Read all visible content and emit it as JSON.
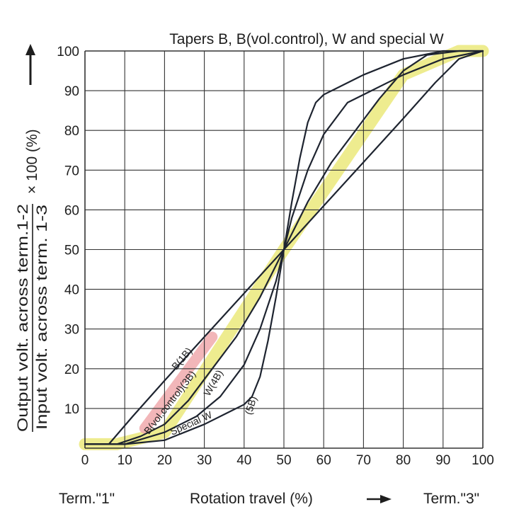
{
  "chart_data": {
    "type": "line",
    "title": "Tapers B, B(vol.control), W and special W",
    "xlabel": "Rotation travel (%)",
    "ylabel_numerator": "Output volt. across term.1-2",
    "ylabel_denominator": "Input volt. across term. 1-3",
    "ylabel_factor": "× 100 (%)",
    "x_start_label": "Term.\"1\"",
    "x_end_label": "Term.\"3\"",
    "xlim": [
      0,
      100
    ],
    "ylim": [
      0,
      100
    ],
    "x_ticks": [
      "0",
      "10",
      "20",
      "30",
      "40",
      "50",
      "60",
      "70",
      "80",
      "90",
      "100"
    ],
    "y_ticks": [
      "10",
      "20",
      "30",
      "40",
      "50",
      "60",
      "70",
      "80",
      "90",
      "100"
    ],
    "grid": true,
    "series": [
      {
        "name": "B(1B)",
        "color": "#1e2430",
        "x": [
          0,
          6,
          12,
          20,
          30,
          40,
          50,
          60,
          70,
          80,
          88,
          94,
          100
        ],
        "y": [
          1,
          1,
          8,
          17,
          28,
          39,
          50,
          61,
          72,
          83,
          92,
          98,
          100
        ]
      },
      {
        "name": "B(vol.control)(3B)",
        "color": "#1e2430",
        "x": [
          0,
          8,
          14,
          20,
          26,
          32,
          38,
          44,
          50,
          56,
          62,
          68,
          74,
          80,
          86,
          94,
          100
        ],
        "y": [
          1,
          1,
          3,
          6,
          12,
          20,
          28,
          38,
          50,
          62,
          72,
          80,
          88,
          95,
          99,
          100,
          100
        ]
      },
      {
        "name": "W(4B)",
        "color": "#1e2430",
        "x": [
          0,
          10,
          20,
          28,
          34,
          40,
          44,
          48,
          50,
          52,
          56,
          60,
          66,
          72,
          80,
          90,
          100
        ],
        "y": [
          1,
          1,
          4,
          8,
          13,
          21,
          30,
          42,
          50,
          58,
          70,
          79,
          87,
          90,
          94,
          98,
          100
        ]
      },
      {
        "name": "Special W",
        "color": "#1e2430",
        "x": [
          0,
          10,
          20,
          30,
          36,
          40,
          42,
          44,
          46,
          48,
          50,
          52,
          54,
          56,
          58,
          60,
          64,
          70,
          80,
          90,
          100
        ],
        "y": [
          1,
          1,
          2,
          6,
          9,
          11,
          13,
          18,
          27,
          38,
          50,
          62,
          73,
          82,
          87,
          89,
          91,
          94,
          98,
          100,
          100
        ]
      }
    ],
    "highlights": [
      {
        "label": "yellow",
        "color": "#e8e66a",
        "x": [
          0,
          8,
          20,
          50,
          80,
          94,
          100
        ],
        "y": [
          1,
          1,
          4,
          50,
          94,
          100,
          100
        ]
      },
      {
        "label": "pink",
        "color": "#f0a9ad",
        "x": [
          15,
          32
        ],
        "y": [
          5,
          28
        ]
      }
    ],
    "annotations": [
      {
        "text": "B(1B)",
        "x": 25,
        "y": 22,
        "angle": -50
      },
      {
        "text": "B(vol.control)(3B)",
        "x": 22,
        "y": 11,
        "angle": -52
      },
      {
        "text": "W(4B)",
        "x": 33,
        "y": 16,
        "angle": -60
      },
      {
        "text": "(5B)",
        "x": 42.5,
        "y": 10.5,
        "angle": -72
      },
      {
        "text": "Special W",
        "x": 27,
        "y": 5.5,
        "angle": -24
      }
    ]
  }
}
